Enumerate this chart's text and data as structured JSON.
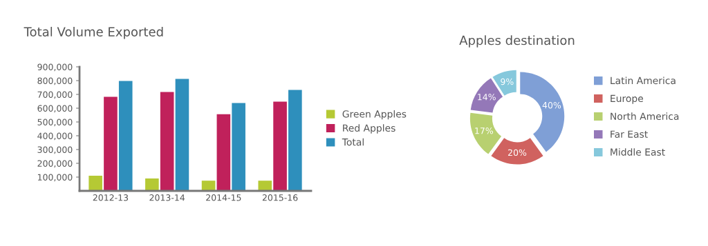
{
  "chart_data": [
    {
      "type": "bar",
      "title": "Total Volume Exported",
      "categories": [
        "2012-13",
        "2013-14",
        "2014-15",
        "2015-16"
      ],
      "series": [
        {
          "name": "Green Apples",
          "color": "#b5c934",
          "values": [
            110000,
            90000,
            74000,
            74000
          ]
        },
        {
          "name": "Red Apples",
          "color": "#c0215b",
          "values": [
            682000,
            717000,
            556000,
            648000
          ]
        },
        {
          "name": "Total",
          "color": "#2e8fbc",
          "values": [
            798000,
            812000,
            637000,
            732000
          ]
        }
      ],
      "ylim": [
        0,
        900000
      ],
      "yticks": [
        {
          "value": 100000,
          "label": "100,000"
        },
        {
          "value": 200000,
          "label": "200,000"
        },
        {
          "value": 300000,
          "label": "300,000"
        },
        {
          "value": 400000,
          "label": "400,000"
        },
        {
          "value": 500000,
          "label": "500,000"
        },
        {
          "value": 600000,
          "label": "600,000"
        },
        {
          "value": 700000,
          "label": "700,000"
        },
        {
          "value": 800000,
          "label": "800,000"
        },
        {
          "value": 900000,
          "label": "900,000"
        }
      ],
      "grid": false,
      "legend": "right"
    },
    {
      "type": "donut",
      "title": "Apples destination",
      "categories": [
        "Latin America",
        "Europe",
        "North America",
        "Far East",
        "Middle East"
      ],
      "values": [
        40,
        20,
        17,
        14,
        9
      ],
      "colors": [
        "#7f9fd6",
        "#d0625f",
        "#b8d070",
        "#9478b8",
        "#86c8dc"
      ],
      "value_labels": [
        "40%",
        "20%",
        "17%",
        "14%",
        "9%"
      ],
      "legend": "right"
    }
  ]
}
